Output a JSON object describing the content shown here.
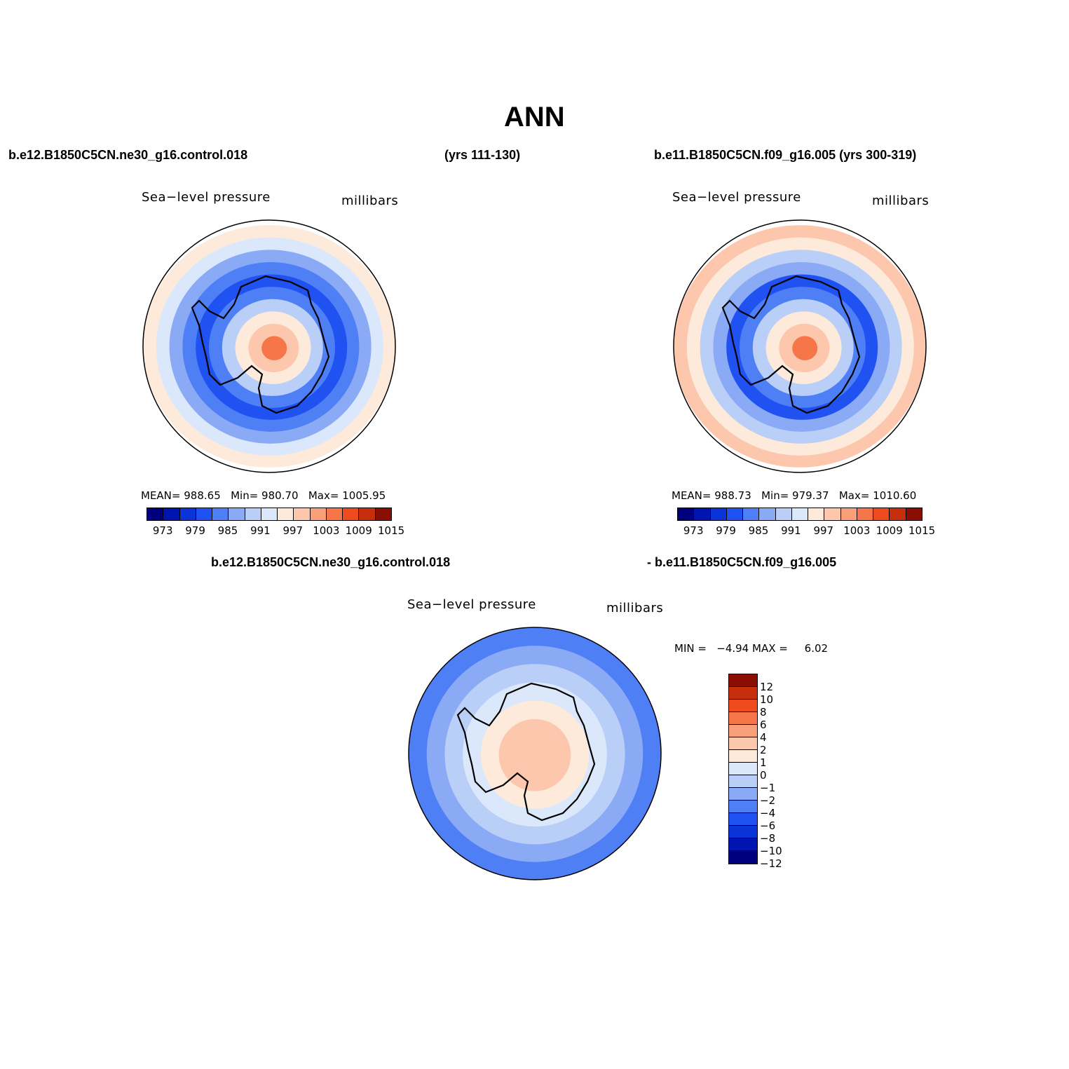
{
  "title": "ANN",
  "header": {
    "left_case": "b.e12.B1850C5CN.ne30_g16.control.018",
    "left_years": "(yrs 111-130)",
    "right_case": "b.e11.B1850C5CN.f09_g16.005 (yrs 300-319)",
    "diff_case_a": "b.e12.B1850C5CN.ne30_g16.control.018",
    "diff_case_b": "- b.e11.B1850C5CN.f09_g16.005"
  },
  "colors": {
    "abs_scale": [
      "#00007f",
      "#0015b0",
      "#0a34d8",
      "#1f52f0",
      "#4f7ff5",
      "#8aaaf6",
      "#b9cff8",
      "#dbe8fb",
      "#fdeadb",
      "#fcc7ac",
      "#f9a07a",
      "#f6764a",
      "#f04b1f",
      "#c72e0c",
      "#8a0f02"
    ],
    "diff_scale": [
      "#00007f",
      "#0015b0",
      "#0a34d8",
      "#1f52f0",
      "#4f7ff5",
      "#8aaaf6",
      "#b9cff8",
      "#dbe8fb",
      "#fdeadb",
      "#fcc7ac",
      "#f9a07a",
      "#f6764a",
      "#f04b1f",
      "#c72e0c",
      "#8a0f02"
    ],
    "land_outline": "#000000"
  },
  "chart_data": [
    {
      "type": "heatmap",
      "projection": "south-polar-stereographic",
      "title": "Sea−level pressure",
      "units": "millibars",
      "stats": {
        "mean_label": "MEAN=",
        "mean": "988.65",
        "min_label": "Min=",
        "min": "980.70",
        "max_label": "Max=",
        "max": "1005.95"
      },
      "levels": [
        973,
        976,
        979,
        982,
        985,
        988,
        991,
        994,
        997,
        1000,
        1003,
        1006,
        1009,
        1012,
        1015
      ],
      "tick_labels": [
        "973",
        "979",
        "985",
        "991",
        "997",
        "1003",
        "1009",
        "1015"
      ],
      "rings": [
        {
          "level_index": 8
        },
        {
          "level_index": 7
        },
        {
          "level_index": 5
        },
        {
          "level_index": 4
        },
        {
          "level_index": 3
        },
        {
          "level_index": 4
        },
        {
          "level_index": 6
        },
        {
          "level_index": 8
        },
        {
          "level_index": 9
        },
        {
          "level_index": 11
        }
      ]
    },
    {
      "type": "heatmap",
      "projection": "south-polar-stereographic",
      "title": "Sea−level pressure",
      "units": "millibars",
      "stats": {
        "mean_label": "MEAN=",
        "mean": "988.73",
        "min_label": "Min=",
        "min": "979.37",
        "max_label": "Max=",
        "max": "1010.60"
      },
      "levels": [
        973,
        976,
        979,
        982,
        985,
        988,
        991,
        994,
        997,
        1000,
        1003,
        1006,
        1009,
        1012,
        1015
      ],
      "tick_labels": [
        "973",
        "979",
        "985",
        "991",
        "997",
        "1003",
        "1009",
        "1015"
      ],
      "rings": [
        {
          "level_index": 9
        },
        {
          "level_index": 8
        },
        {
          "level_index": 6
        },
        {
          "level_index": 5
        },
        {
          "level_index": 3
        },
        {
          "level_index": 4
        },
        {
          "level_index": 6
        },
        {
          "level_index": 8
        },
        {
          "level_index": 9
        },
        {
          "level_index": 11
        }
      ]
    },
    {
      "type": "heatmap",
      "projection": "south-polar-stereographic",
      "title": "Sea−level pressure",
      "units": "millibars",
      "stats": {
        "min_label": "MIN =",
        "min": "−4.94",
        "max_label": "MAX =",
        "max": "6.02"
      },
      "levels": [
        -12,
        -10,
        -8,
        -6,
        -4,
        -2,
        -1,
        0,
        1,
        2,
        4,
        6,
        8,
        10,
        12
      ],
      "tick_labels": [
        "12",
        "10",
        "8",
        "6",
        "4",
        "2",
        "1",
        "0",
        "−1",
        "−2",
        "−4",
        "−6",
        "−8",
        "−10",
        "−12"
      ],
      "rings": [
        {
          "level_index": 4
        },
        {
          "level_index": 5
        },
        {
          "level_index": 6
        },
        {
          "level_index": 7
        },
        {
          "level_index": 8
        },
        {
          "level_index": 9
        },
        {
          "level_index": 9
        }
      ]
    }
  ]
}
